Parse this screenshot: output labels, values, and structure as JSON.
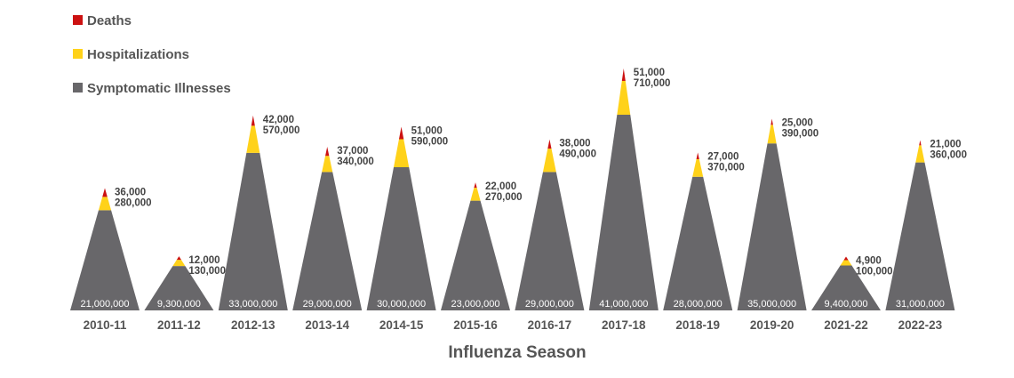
{
  "chart_data": {
    "type": "area",
    "title": "",
    "xlabel": "Influenza Season",
    "ylabel": "",
    "legend_position": "top-left",
    "series": [
      {
        "name": "Deaths",
        "color": "#cc1111",
        "values": [
          36000,
          12000,
          42000,
          37000,
          51000,
          22000,
          38000,
          51000,
          27000,
          25000,
          4900,
          21000
        ],
        "labels": [
          "36,000",
          "12,000",
          "42,000",
          "37,000",
          "51,000",
          "22,000",
          "38,000",
          "51,000",
          "27,000",
          "25,000",
          "4,900",
          "21,000"
        ]
      },
      {
        "name": "Hospitalizations",
        "color": "#ffd21a",
        "values": [
          280000,
          130000,
          570000,
          340000,
          590000,
          270000,
          490000,
          710000,
          370000,
          390000,
          100000,
          360000
        ],
        "labels": [
          "280,000",
          "130,000",
          "570,000",
          "340,000",
          "590,000",
          "270,000",
          "490,000",
          "710,000",
          "370,000",
          "390,000",
          "100,000",
          "360,000"
        ]
      },
      {
        "name": "Symptomatic Illnesses",
        "color": "#68676a",
        "values": [
          21000000,
          9300000,
          33000000,
          29000000,
          30000000,
          23000000,
          29000000,
          41000000,
          28000000,
          35000000,
          9400000,
          31000000
        ],
        "labels": [
          "21,000,000",
          "9,300,000",
          "33,000,000",
          "29,000,000",
          "30,000,000",
          "23,000,000",
          "29,000,000",
          "41,000,000",
          "28,000,000",
          "35,000,000",
          "9,400,000",
          "31,000,000"
        ]
      }
    ],
    "categories": [
      "2010-11",
      "2011-12",
      "2012-13",
      "2013-14",
      "2014-15",
      "2015-16",
      "2016-17",
      "2017-18",
      "2018-19",
      "2019-20",
      "2021-22",
      "2022-23"
    ]
  }
}
